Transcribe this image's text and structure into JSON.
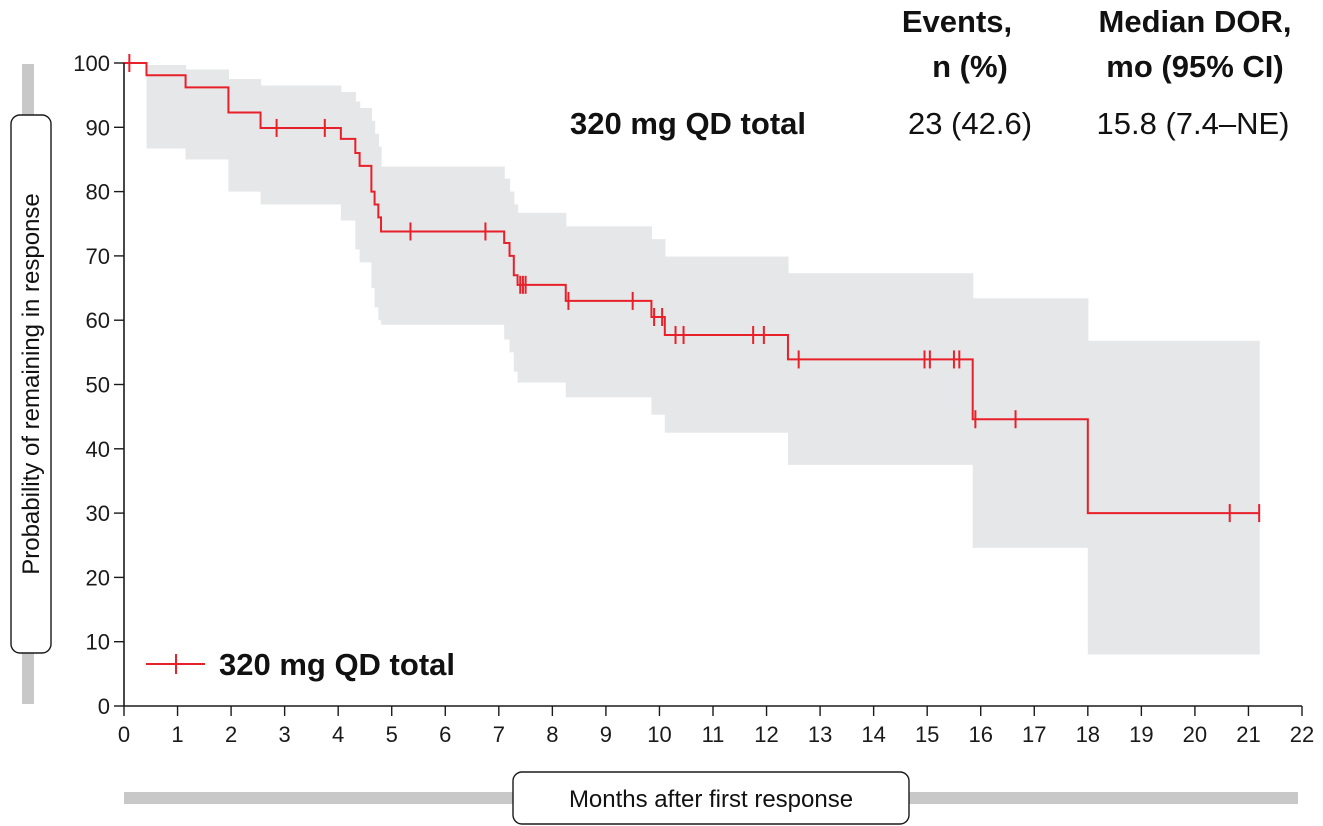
{
  "chart_data": {
    "type": "line",
    "title": "",
    "xlabel": "Months after first response",
    "ylabel": "Probability of remaining in response",
    "xlim": [
      0,
      22
    ],
    "ylim": [
      0,
      100
    ],
    "x_ticks": [
      0,
      1,
      2,
      3,
      4,
      5,
      6,
      7,
      8,
      9,
      10,
      11,
      12,
      13,
      14,
      15,
      16,
      17,
      18,
      19,
      20,
      21,
      22
    ],
    "y_ticks": [
      0,
      10,
      20,
      30,
      40,
      50,
      60,
      70,
      80,
      90,
      100
    ],
    "grid": false,
    "legend_position": "bottom-left",
    "colors": {
      "line": "#e8202a",
      "ci_band": "#e6e7e9",
      "axis_bar": "#c8c8c8"
    },
    "table": {
      "headers": [
        {
          "line1": "Events,",
          "line2": "n (%)"
        },
        {
          "line1": "Median DOR,",
          "line2": "mo (95% CI)"
        }
      ],
      "rows": [
        {
          "label": "320 mg QD total",
          "events": "23 (42.6)",
          "median": "15.8 (7.4–NE)"
        }
      ]
    },
    "series": [
      {
        "name": "320 mg QD total",
        "steps": [
          [
            0,
            100
          ],
          [
            0.42,
            98.1
          ],
          [
            1.15,
            96.2
          ],
          [
            1.95,
            92.3
          ],
          [
            2.55,
            89.9
          ],
          [
            4.05,
            88.2
          ],
          [
            4.32,
            86.0
          ],
          [
            4.4,
            84.0
          ],
          [
            4.62,
            80.0
          ],
          [
            4.68,
            78.0
          ],
          [
            4.75,
            76.0
          ],
          [
            4.8,
            73.8
          ],
          [
            7.1,
            72.0
          ],
          [
            7.2,
            70.0
          ],
          [
            7.28,
            67.0
          ],
          [
            7.35,
            65.5
          ],
          [
            8.25,
            63.0
          ],
          [
            9.85,
            60.5
          ],
          [
            10.1,
            57.7
          ],
          [
            12.4,
            53.9
          ],
          [
            15.85,
            44.6
          ],
          [
            18.0,
            30.0
          ]
        ],
        "end_x": 21.2,
        "censored": [
          [
            0.1,
            100
          ],
          [
            2.85,
            89.9
          ],
          [
            3.75,
            89.9
          ],
          [
            5.35,
            73.8
          ],
          [
            6.75,
            73.8
          ],
          [
            7.4,
            65.5
          ],
          [
            7.45,
            65.5
          ],
          [
            7.5,
            65.5
          ],
          [
            8.3,
            63.0
          ],
          [
            9.5,
            63.0
          ],
          [
            9.9,
            60.5
          ],
          [
            10.05,
            60.5
          ],
          [
            10.3,
            57.7
          ],
          [
            10.45,
            57.7
          ],
          [
            11.75,
            57.7
          ],
          [
            11.95,
            57.7
          ],
          [
            12.6,
            53.9
          ],
          [
            14.95,
            53.9
          ],
          [
            15.05,
            53.9
          ],
          [
            15.5,
            53.9
          ],
          [
            15.6,
            53.9
          ],
          [
            15.9,
            44.6
          ],
          [
            16.65,
            44.6
          ],
          [
            20.65,
            30.0
          ],
          [
            21.2,
            30.0
          ]
        ],
        "ci": [
          {
            "x0": 0.0,
            "x1": 0.42,
            "lo": 100.0,
            "hi": 100.0
          },
          {
            "x0": 0.42,
            "x1": 1.15,
            "lo": 86.7,
            "hi": 99.7
          },
          {
            "x0": 1.15,
            "x1": 1.95,
            "lo": 85.0,
            "hi": 99.0
          },
          {
            "x0": 1.95,
            "x1": 2.55,
            "lo": 80.0,
            "hi": 97.5
          },
          {
            "x0": 2.55,
            "x1": 4.05,
            "lo": 78.0,
            "hi": 96.5
          },
          {
            "x0": 4.05,
            "x1": 4.32,
            "lo": 75.5,
            "hi": 95.5
          },
          {
            "x0": 4.32,
            "x1": 4.4,
            "lo": 71.0,
            "hi": 94.0
          },
          {
            "x0": 4.4,
            "x1": 4.62,
            "lo": 69.0,
            "hi": 93.0
          },
          {
            "x0": 4.62,
            "x1": 4.68,
            "lo": 65.0,
            "hi": 91.0
          },
          {
            "x0": 4.68,
            "x1": 4.75,
            "lo": 62.0,
            "hi": 89.0
          },
          {
            "x0": 4.75,
            "x1": 4.8,
            "lo": 60.0,
            "hi": 87.0
          },
          {
            "x0": 4.8,
            "x1": 7.1,
            "lo": 59.3,
            "hi": 83.9
          },
          {
            "x0": 7.1,
            "x1": 7.2,
            "lo": 57.0,
            "hi": 82.0
          },
          {
            "x0": 7.2,
            "x1": 7.28,
            "lo": 55.0,
            "hi": 80.0
          },
          {
            "x0": 7.28,
            "x1": 7.35,
            "lo": 52.0,
            "hi": 78.0
          },
          {
            "x0": 7.35,
            "x1": 8.25,
            "lo": 50.3,
            "hi": 76.7
          },
          {
            "x0": 8.25,
            "x1": 9.85,
            "lo": 48.0,
            "hi": 74.6
          },
          {
            "x0": 9.85,
            "x1": 10.1,
            "lo": 45.3,
            "hi": 72.6
          },
          {
            "x0": 10.1,
            "x1": 12.4,
            "lo": 42.5,
            "hi": 69.9
          },
          {
            "x0": 12.4,
            "x1": 15.85,
            "lo": 37.5,
            "hi": 67.3
          },
          {
            "x0": 15.85,
            "x1": 18.0,
            "lo": 24.6,
            "hi": 63.4
          },
          {
            "x0": 18.0,
            "x1": 21.2,
            "lo": 8.0,
            "hi": 56.8
          }
        ]
      }
    ]
  }
}
